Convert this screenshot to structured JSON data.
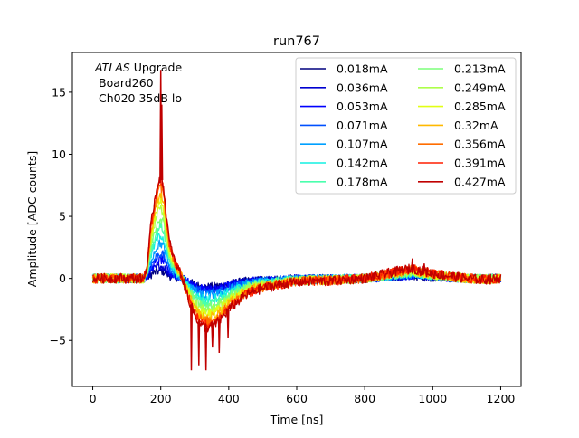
{
  "chart_data": {
    "type": "line",
    "title": "run767",
    "xlabel": "Time [ns]",
    "ylabel": "Amplitude [ADC counts]",
    "xlim": [
      -60,
      1260
    ],
    "ylim": [
      -8.7,
      18.2
    ],
    "xticks": [
      0,
      200,
      400,
      600,
      800,
      1000,
      1200
    ],
    "yticks": [
      -5,
      0,
      5,
      10,
      15
    ],
    "grid": false,
    "legend_placement": "top-right",
    "legend_columns": 2,
    "annotation": {
      "line1_italic": "ATLAS",
      "line1_rest": " Upgrade",
      "line2": "Board260",
      "line3": "Ch020 35dB lo"
    },
    "series_shape": {
      "x": [
        0,
        150,
        160,
        170,
        180,
        190,
        195,
        200,
        205,
        210,
        215,
        225,
        240,
        260,
        280,
        300,
        320,
        340,
        360,
        380,
        400,
        430,
        460,
        500,
        550,
        600,
        650,
        700,
        750,
        800,
        850,
        900,
        940,
        970,
        1000,
        1050,
        1100,
        1150,
        1200
      ],
      "y_at_max_current": [
        0.0,
        0.0,
        1.0,
        4.0,
        6.0,
        7.5,
        8.0,
        8.1,
        7.8,
        7.0,
        5.5,
        3.0,
        1.5,
        0.3,
        -1.5,
        -3.0,
        -3.8,
        -4.0,
        -3.7,
        -3.2,
        -2.5,
        -1.8,
        -1.2,
        -0.8,
        -0.5,
        -0.3,
        -0.2,
        -0.2,
        -0.1,
        0.0,
        0.3,
        0.6,
        0.8,
        0.6,
        0.4,
        0.2,
        0.0,
        -0.1,
        0.0
      ]
    },
    "series": [
      {
        "name": "0.018mA",
        "color": "#00007f",
        "peak": 0.6,
        "undershoot": 0.7,
        "bump": 0.2
      },
      {
        "name": "0.036mA",
        "color": "#0000d0",
        "peak": 1.0,
        "undershoot": 0.8,
        "bump": 0.25
      },
      {
        "name": "0.053mA",
        "color": "#0000ff",
        "peak": 1.5,
        "undershoot": 0.9,
        "bump": 0.3
      },
      {
        "name": "0.071mA",
        "color": "#0050ff",
        "peak": 2.0,
        "undershoot": 1.1,
        "bump": 0.35
      },
      {
        "name": "0.107mA",
        "color": "#00a0ff",
        "peak": 2.8,
        "undershoot": 1.4,
        "bump": 0.4
      },
      {
        "name": "0.142mA",
        "color": "#14f0e2",
        "peak": 3.5,
        "undershoot": 1.7,
        "bump": 0.45
      },
      {
        "name": "0.178mA",
        "color": "#4affad",
        "peak": 4.2,
        "undershoot": 2.0,
        "bump": 0.5
      },
      {
        "name": "0.213mA",
        "color": "#7dff7a",
        "peak": 4.9,
        "undershoot": 2.3,
        "bump": 0.55
      },
      {
        "name": "0.249mA",
        "color": "#adff4a",
        "peak": 5.6,
        "undershoot": 2.6,
        "bump": 0.6
      },
      {
        "name": "0.285mA",
        "color": "#e2ff14",
        "peak": 6.2,
        "undershoot": 2.9,
        "bump": 0.65
      },
      {
        "name": "0.32mA",
        "color": "#ffb900",
        "peak": 6.8,
        "undershoot": 3.2,
        "bump": 0.7
      },
      {
        "name": "0.356mA",
        "color": "#ff6d00",
        "peak": 7.3,
        "undershoot": 3.5,
        "bump": 0.75
      },
      {
        "name": "0.391mA",
        "color": "#ff1e00",
        "peak": 7.8,
        "undershoot": 3.8,
        "bump": 0.8
      },
      {
        "name": "0.427mA",
        "color": "#c00000",
        "peak": 8.1,
        "undershoot": 4.0,
        "bump": 0.85
      }
    ],
    "spikes": [
      {
        "x": 200,
        "y": 16.8
      },
      {
        "x": 203,
        "y": 14.0
      },
      {
        "x": 290,
        "y": -7.4
      },
      {
        "x": 312,
        "y": -7.0
      },
      {
        "x": 333,
        "y": -7.4
      },
      {
        "x": 352,
        "y": -5.5
      },
      {
        "x": 372,
        "y": -6.0
      },
      {
        "x": 398,
        "y": -4.8
      },
      {
        "x": 940,
        "y": 1.6
      },
      {
        "x": 975,
        "y": 1.2
      }
    ]
  }
}
